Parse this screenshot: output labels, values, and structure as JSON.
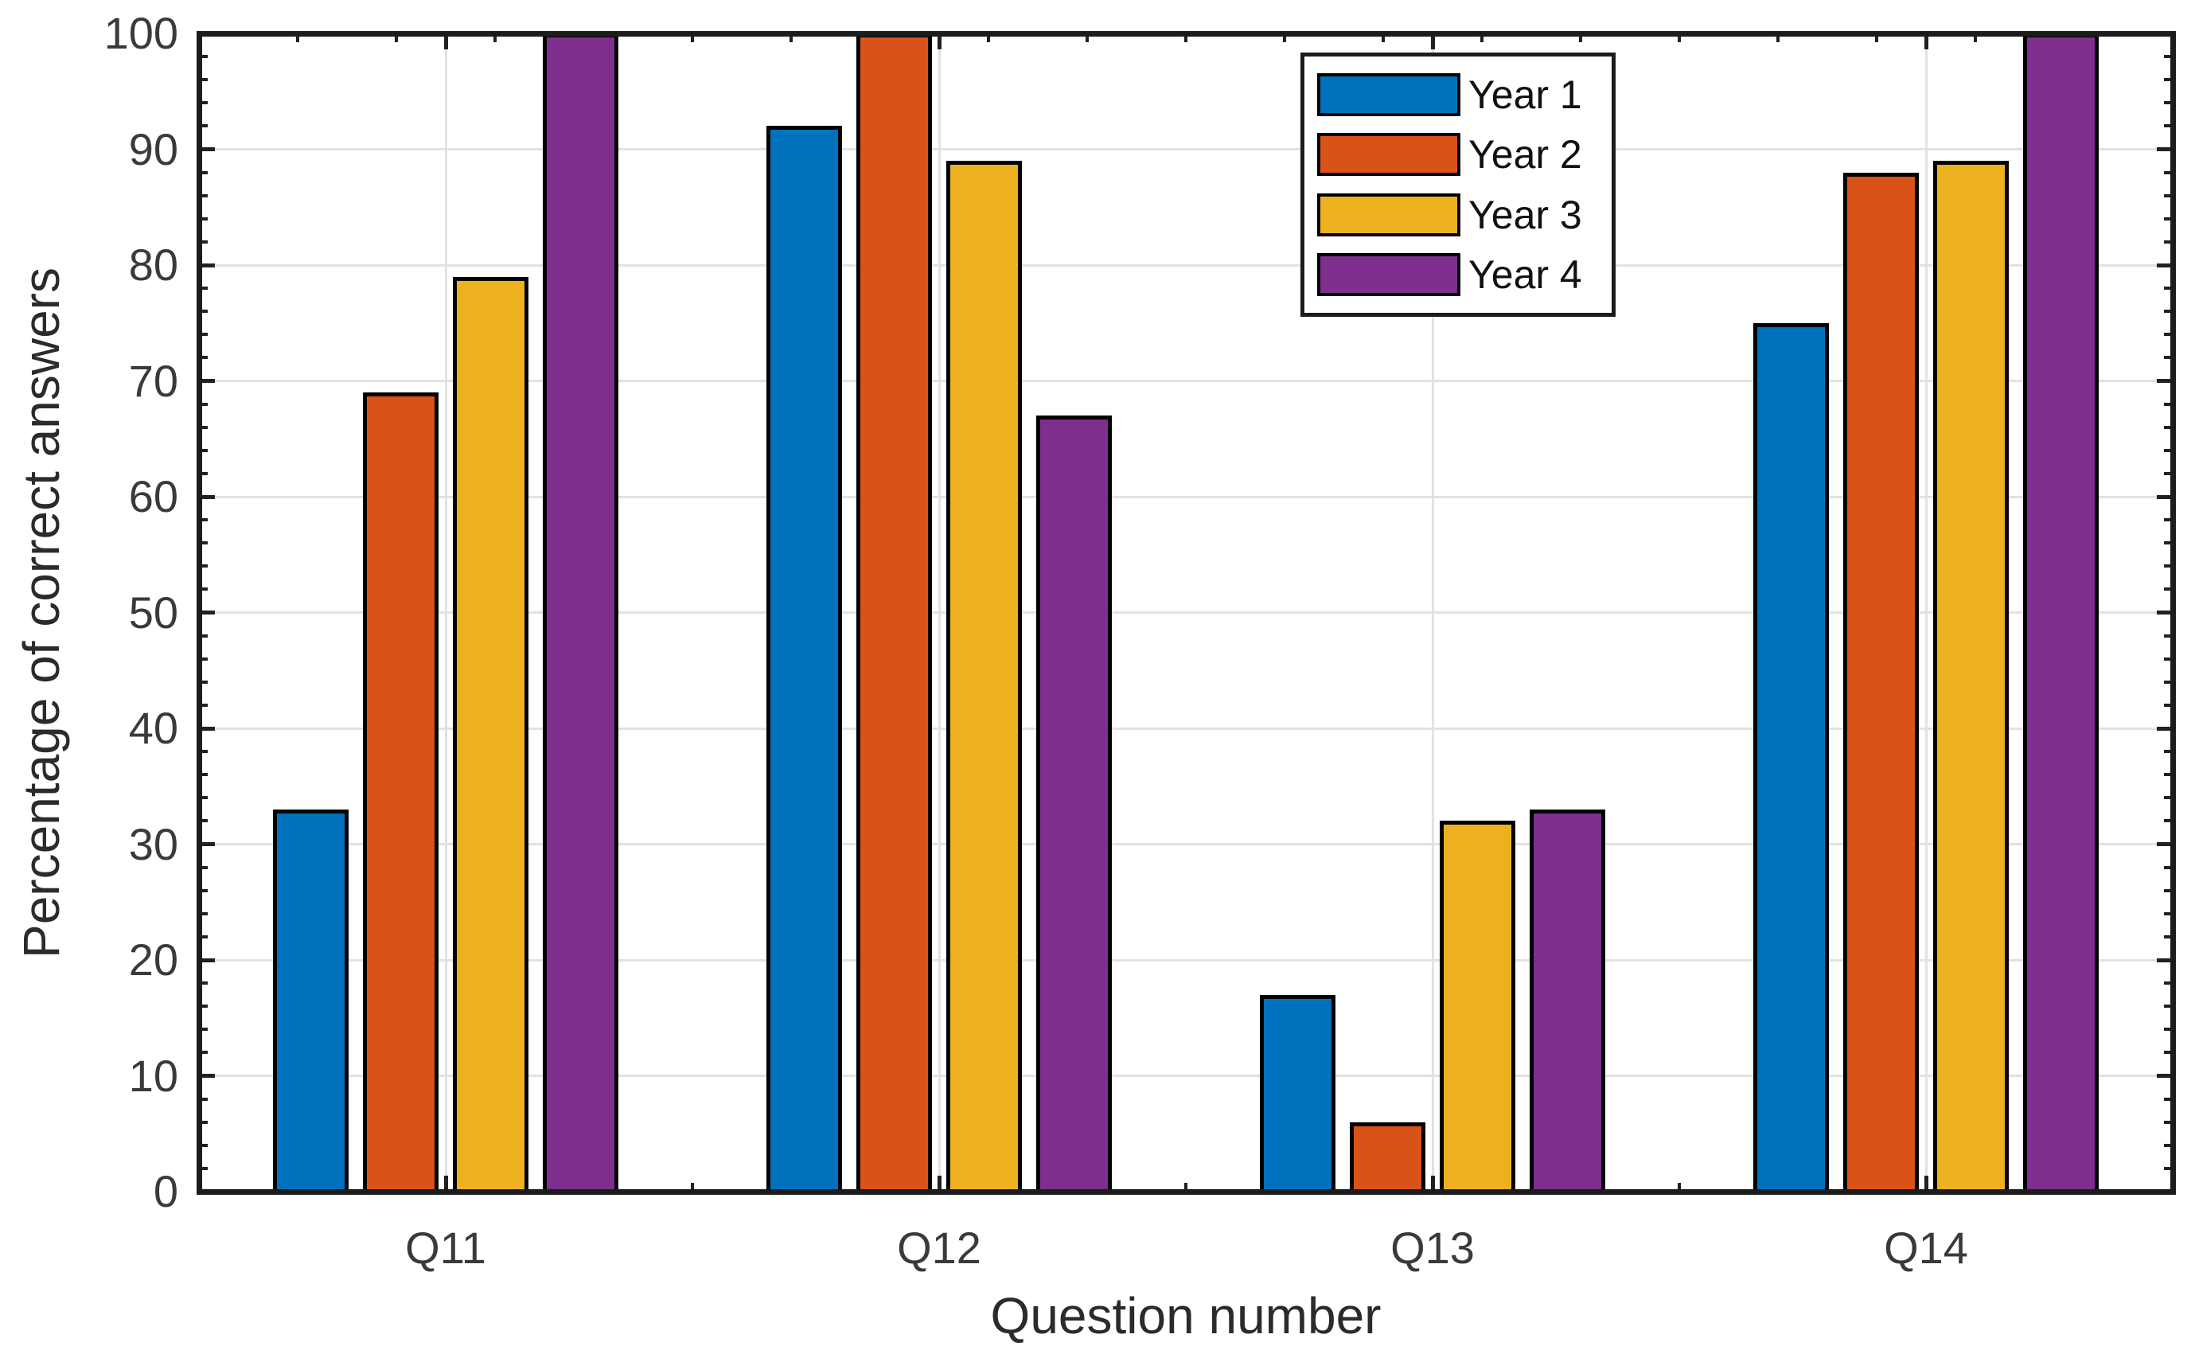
{
  "figure": {
    "background": "#ffffff",
    "axis_color": "#1c1c1c",
    "grid_color": "#e2e2e2",
    "bar_edge_color": "#000000"
  },
  "chart_data": {
    "type": "bar",
    "title": "",
    "xlabel": "Question number",
    "ylabel": "Percentage of correct answers",
    "categories": [
      "Q11",
      "Q12",
      "Q13",
      "Q14"
    ],
    "series": [
      {
        "name": "Year 1",
        "color": "#0072BD",
        "values": [
          33,
          92,
          17,
          75
        ]
      },
      {
        "name": "Year 2",
        "color": "#D95319",
        "values": [
          69,
          100,
          6,
          88
        ]
      },
      {
        "name": "Year 3",
        "color": "#EDB120",
        "values": [
          79,
          89,
          32,
          89
        ]
      },
      {
        "name": "Year 4",
        "color": "#7E2F8E",
        "values": [
          100,
          67,
          33,
          100
        ]
      }
    ],
    "ylim": [
      0,
      100
    ],
    "yticks": [
      0,
      10,
      20,
      30,
      40,
      50,
      60,
      70,
      80,
      90,
      100
    ],
    "y_minor_step": 2,
    "x_minor_step": 0.2,
    "grid": {
      "x": true,
      "y": true
    },
    "legend": {
      "position": "north-inside",
      "entries": [
        "Year 1",
        "Year 2",
        "Year 3",
        "Year 4"
      ]
    }
  }
}
